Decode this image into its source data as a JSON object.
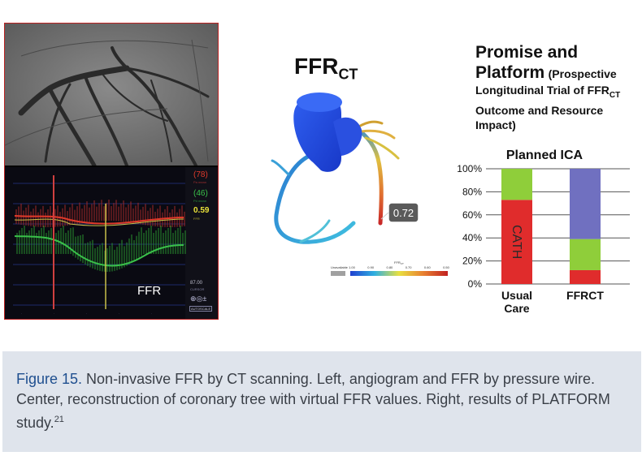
{
  "center": {
    "title_main": "FFR",
    "title_sub": "CT",
    "value_callout": "0.72",
    "scale": {
      "unavailable": "Unavailable",
      "axis_label": "FFR",
      "axis_label_sub": "CT",
      "ticks": [
        "1.00",
        "0.90",
        "0.80",
        "0.70",
        "0.60",
        "0.50"
      ]
    }
  },
  "left": {
    "ffr_label": "FFR",
    "readout_red": "(78)",
    "readout_red_sub": "Pa mean",
    "readout_green": "(46)",
    "readout_green_sub": "Pd mean",
    "readout_yellow": "0.59",
    "readout_yellow_sub": "FFR",
    "cursor_value": "87.00",
    "cursor_label": "CURSOR",
    "autoscale_label": "AUTOSCALE"
  },
  "right": {
    "title_line1": "Promise and",
    "title_line2": "Platform",
    "subtitle_open": "(Prospective",
    "subtitle_line2_main": "Longitudinal Trial of FFR",
    "subtitle_line2_sub": "CT",
    "subtitle_line3": "Outcome and Resource",
    "subtitle_line4": "Impact)"
  },
  "chart_data": {
    "type": "bar",
    "stacked": true,
    "title": "Planned ICA",
    "categories": [
      "Usual Care",
      "FFRCT"
    ],
    "category_labels": [
      [
        "Usual",
        "Care"
      ],
      [
        "FFRCT"
      ]
    ],
    "ylim": [
      0,
      100
    ],
    "yticks": [
      "0%",
      "20%",
      "40%",
      "60%",
      "80%",
      "100%"
    ],
    "yvalues": [
      0,
      20,
      40,
      60,
      80,
      100
    ],
    "series": [
      {
        "name": "CATH",
        "color": "#e02c2c",
        "values": [
          73,
          12
        ]
      },
      {
        "name": "green",
        "color": "#8fce3a",
        "values": [
          27,
          27
        ]
      },
      {
        "name": "purple",
        "color": "#7070c0",
        "values": [
          0,
          61
        ]
      }
    ],
    "bar_annotation": "CATH"
  },
  "caption": {
    "label": "Figure 15.",
    "text": " Non-invasive FFR by CT scanning. Left, angiogram and FFR by pressure wire. Center, reconstruction of coronary tree with virtual FFR values. Right, results of PLATFORM study.",
    "ref": "21"
  },
  "colors": {
    "caption_bg": "#dfe4ec",
    "caption_label": "#1f4f8f",
    "cath_red": "#e02c2c",
    "green": "#8fce3a",
    "purple": "#7070c0"
  }
}
